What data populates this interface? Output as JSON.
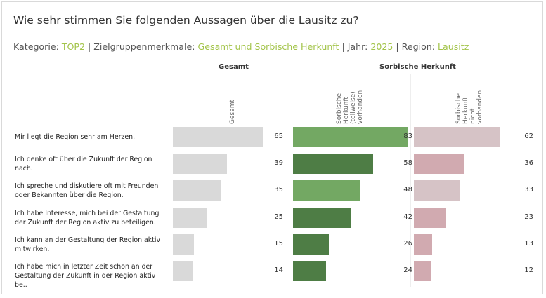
{
  "title": "Wie sehr stimmen Sie folgenden Aussagen über die Lausitz zu?",
  "filters": {
    "kategorie_label": "Kategorie: ",
    "kategorie_value": "TOP2",
    "zielgruppe_label": "Zielgruppenmerkmale: ",
    "zielgruppe_value": "Gesamt und Sorbische Herkunft",
    "jahr_label": "Jahr: ",
    "jahr_value": "2025",
    "region_label": "Region: ",
    "region_value": "Lausitz",
    "separator": " | "
  },
  "colors": {
    "gesamt": "#d9d9d9",
    "green_dark": "#4e7d45",
    "green_light": "#73a863",
    "pink_dark": "#d1aab0",
    "pink_light": "#d6c3c6",
    "highlight": "#a3c44a"
  },
  "chart_data": {
    "type": "bar",
    "orientation": "horizontal",
    "title": "Wie sehr stimmen Sie folgenden Aussagen über die Lausitz zu?",
    "groups": [
      "Gesamt",
      "Sorbische Herkunft"
    ],
    "categories": [
      "Mir liegt die Region sehr am Herzen.",
      "Ich denke oft über die Zukunft der Region nach.",
      "Ich spreche und diskutiere oft mit Freunden oder Bekannten über die Region.",
      "Ich habe Interesse, mich bei der Gestaltung der Zukunft der Region aktiv zu beteiligen.",
      "Ich kann an der Gestaltung der Region aktiv mitwirken.",
      "Ich habe mich in letzter Zeit schon an der Gestaltung der Zukunft in der Region aktiv be.."
    ],
    "series": [
      {
        "name": "Gesamt",
        "group": "Gesamt",
        "values": [
          65,
          39,
          35,
          25,
          15,
          14
        ]
      },
      {
        "name": "Sorbische\nHerkunft\n(teilweise)\nvorhanden",
        "group": "Sorbische Herkunft",
        "values": [
          83,
          58,
          48,
          42,
          26,
          24
        ]
      },
      {
        "name": "Sorbische\nHerkunft\nnicht\nvorhanden",
        "group": "Sorbische Herkunft",
        "values": [
          62,
          36,
          33,
          23,
          13,
          12
        ]
      }
    ],
    "xlim": [
      0,
      100
    ],
    "grid": false,
    "legend": "none"
  }
}
